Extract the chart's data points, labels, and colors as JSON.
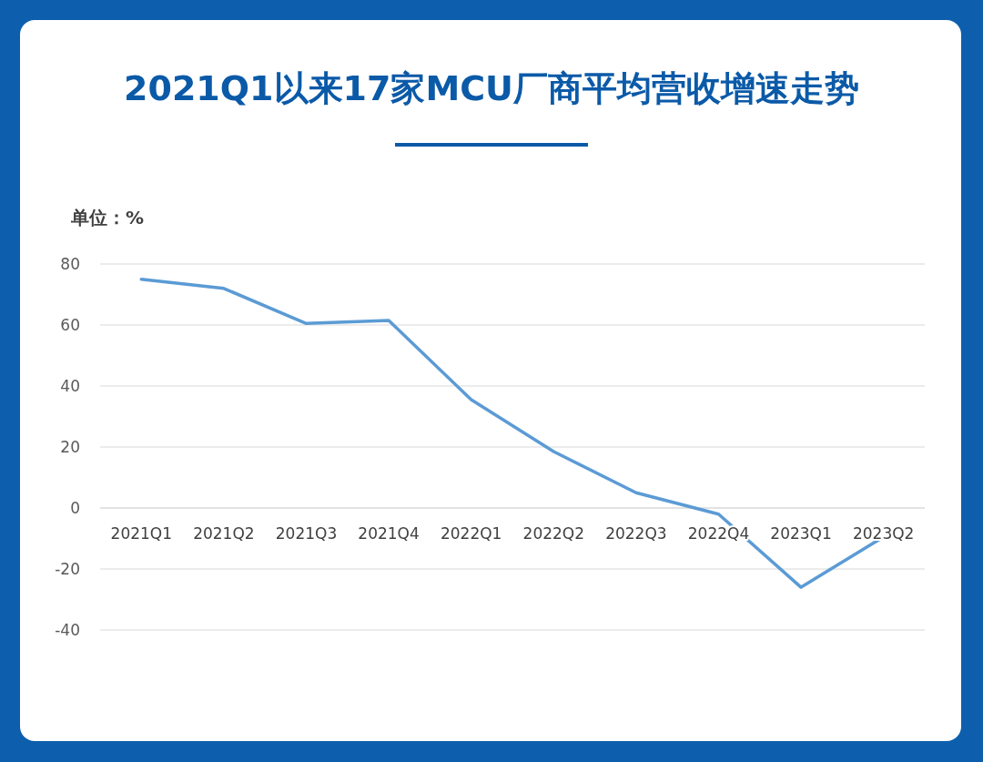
{
  "chart_data": {
    "type": "line",
    "title": "2021Q1以来17家MCU厂商平均营收增速走势",
    "ylabel": "单位：%",
    "categories": [
      "2021Q1",
      "2021Q2",
      "2021Q3",
      "2021Q4",
      "2022Q1",
      "2022Q2",
      "2022Q3",
      "2022Q4",
      "2023Q1",
      "2023Q2"
    ],
    "series": [
      {
        "color": "#5b9bd5",
        "values": [
          75,
          72,
          60.5,
          61.5,
          35.5,
          18.5,
          5,
          -2,
          -26,
          -9.5
        ]
      }
    ],
    "ylim": [
      -40,
      80
    ],
    "yticks": [
      -40,
      -20,
      0,
      20,
      40,
      60,
      80
    ],
    "grid": "y",
    "marker": "none",
    "line_style": "solid"
  }
}
